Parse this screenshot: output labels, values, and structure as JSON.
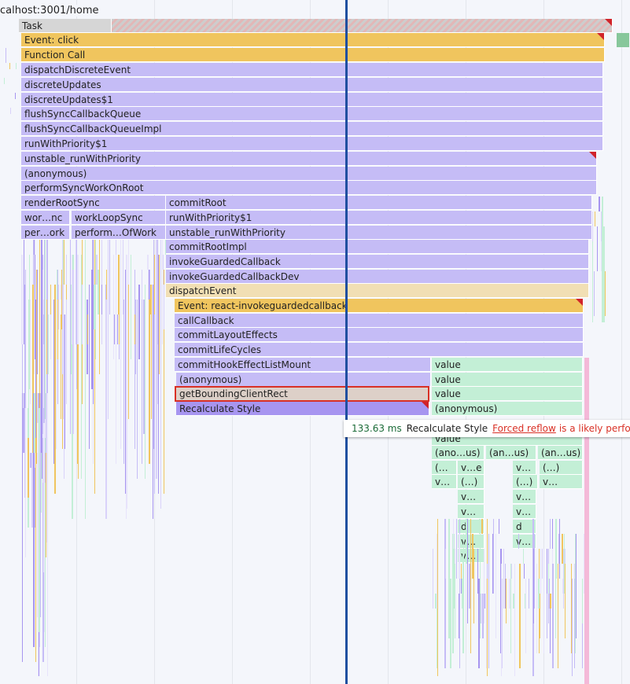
{
  "page": {
    "url": "calhost:3001/home"
  },
  "colors": {
    "scripting": "#c5bcf6",
    "event": "#f0c55e",
    "rendering": "#a795f0",
    "painting": "#c3efd6",
    "forced_reflow_marker": "#d0232a",
    "cursor": "#1f4fa0"
  },
  "flame": {
    "task_label": "Task",
    "main_stack": [
      "Event: click",
      "Function Call",
      "dispatchDiscreteEvent",
      "discreteUpdates",
      "discreteUpdates$1",
      "flushSyncCallbackQueue",
      "flushSyncCallbackQueueImpl",
      "runWithPriority$1",
      "unstable_runWithPriority",
      "(anonymous)",
      "performSyncWorkOnRoot"
    ],
    "render_left": {
      "render_root": "renderRootSync",
      "wor_nc": "wor…nc",
      "work_loop": "workLoopSync",
      "per_ork": "per…ork",
      "perform_of_work": "perform…OfWork"
    },
    "commit_stack": [
      "commitRoot",
      "runWithPriority$1",
      "unstable_runWithPriority",
      "commitRootImpl",
      "invokeGuardedCallback",
      "invokeGuardedCallbackDev",
      "dispatchEvent"
    ],
    "inner_stack": [
      "Event: react-invokeguardedcallback",
      "callCallback",
      "commitLayoutEffects",
      "commitLifeCycles",
      "commitHookEffectListMount",
      "(anonymous)"
    ],
    "selected_frame": "getBoundingClientRect",
    "recalc_frame": "Recalculate Style",
    "right_column": [
      "value",
      "value",
      "value",
      "(anonymous)",
      "value"
    ],
    "right_row_anon": [
      "(ano…us)",
      "(an…us)",
      "(an…us)"
    ],
    "right_row_a": [
      "(…",
      "v…e",
      "v…",
      "(…)"
    ],
    "right_row_b": [
      "v…",
      "(…)",
      "(…)",
      "v…"
    ],
    "right_row_c": [
      "v…",
      "v…"
    ],
    "right_row_d": [
      "v…",
      "v…"
    ],
    "right_row_e": [
      "d",
      "d"
    ],
    "right_row_f": [
      "v…",
      "v…"
    ],
    "right_row_g": [
      "v…"
    ]
  },
  "tooltip": {
    "duration": "133.63 ms",
    "name": "Recalculate Style",
    "warning_link": "Forced reflow",
    "warning_text": "is a likely performance bottleneck."
  }
}
